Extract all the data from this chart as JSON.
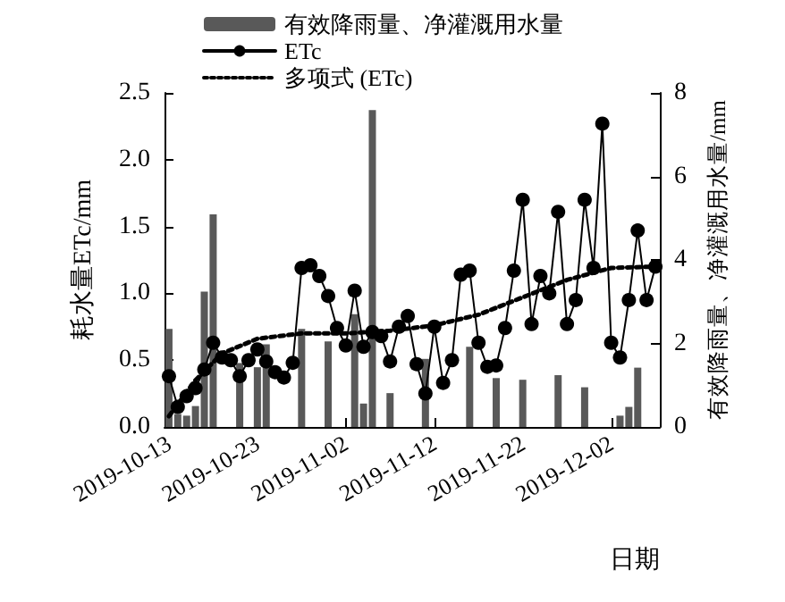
{
  "chart_data": {
    "type": "line",
    "xlabel": "日期",
    "ylabel": "耗水量ETc/mm",
    "y2label": "有效降雨量、净灌溉用水量/mm",
    "xlim": [
      "2019-10-12T12:00",
      "2019-12-07T12:00"
    ],
    "xticks": [
      "2019-10-13",
      "2019-10-23",
      "2019-11-02",
      "2019-11-12",
      "2019-11-22",
      "2019-12-02"
    ],
    "ylim": [
      0,
      2.5
    ],
    "yticks": [
      {
        "value": 0,
        "label": "0.0"
      },
      {
        "value": 0.5,
        "label": "0.5"
      },
      {
        "value": 1,
        "label": "1.0"
      },
      {
        "value": 1.5,
        "label": "1.5"
      },
      {
        "value": 2,
        "label": "2.0"
      },
      {
        "value": 2.5,
        "label": "2.5"
      }
    ],
    "y2lim": [
      0,
      8
    ],
    "y2ticks": [
      0,
      2,
      4,
      6,
      8
    ],
    "legend": "top",
    "grid": false,
    "series": [
      {
        "name": "有效降雨量、净灌溉用水量",
        "type": "bar",
        "axis": "y2",
        "color": "#595959",
        "x": [
          "2019-10-13",
          "2019-10-14",
          "2019-10-15",
          "2019-10-16",
          "2019-10-17",
          "2019-10-18",
          "2019-10-21",
          "2019-10-23",
          "2019-10-24",
          "2019-10-28",
          "2019-10-31",
          "2019-11-03",
          "2019-11-04",
          "2019-11-05",
          "2019-11-07",
          "2019-11-11",
          "2019-11-16",
          "2019-11-19",
          "2019-11-22",
          "2019-11-26",
          "2019-11-29",
          "2019-12-03",
          "2019-12-04",
          "2019-12-05"
        ],
        "values": [
          2.35,
          0.31,
          0.27,
          0.5,
          3.24,
          5.09,
          1.53,
          1.43,
          1.98,
          2.35,
          2.05,
          2.7,
          0.56,
          7.59,
          0.81,
          1.63,
          1.92,
          1.17,
          1.13,
          1.24,
          0.95,
          0.27,
          0.48,
          1.42
        ]
      },
      {
        "name": "ETc",
        "color": "#000000",
        "marker": "circle",
        "line_style": "solid",
        "x": [
          "2019-10-13",
          "2019-10-14",
          "2019-10-15",
          "2019-10-16",
          "2019-10-17",
          "2019-10-18",
          "2019-10-19",
          "2019-10-20",
          "2019-10-21",
          "2019-10-22",
          "2019-10-23",
          "2019-10-24",
          "2019-10-25",
          "2019-10-26",
          "2019-10-27",
          "2019-10-28",
          "2019-10-29",
          "2019-10-30",
          "2019-10-31",
          "2019-11-01",
          "2019-11-02",
          "2019-11-03",
          "2019-11-04",
          "2019-11-05",
          "2019-11-06",
          "2019-11-07",
          "2019-11-08",
          "2019-11-09",
          "2019-11-10",
          "2019-11-11",
          "2019-11-12",
          "2019-11-13",
          "2019-11-14",
          "2019-11-15",
          "2019-11-16",
          "2019-11-17",
          "2019-11-18",
          "2019-11-19",
          "2019-11-20",
          "2019-11-21",
          "2019-11-22",
          "2019-11-23",
          "2019-11-24",
          "2019-11-25",
          "2019-11-26",
          "2019-11-27",
          "2019-11-28",
          "2019-11-29",
          "2019-11-30",
          "2019-12-01",
          "2019-12-02",
          "2019-12-03",
          "2019-12-04",
          "2019-12-05",
          "2019-12-06",
          "2019-12-07"
        ],
        "values": [
          0.38,
          0.15,
          0.23,
          0.29,
          0.43,
          0.63,
          0.52,
          0.5,
          0.38,
          0.5,
          0.58,
          0.49,
          0.41,
          0.37,
          0.48,
          1.19,
          1.21,
          1.13,
          0.98,
          0.74,
          0.61,
          1.02,
          0.6,
          0.71,
          0.68,
          0.49,
          0.75,
          0.83,
          0.47,
          0.25,
          0.75,
          0.33,
          0.5,
          1.14,
          1.17,
          0.63,
          0.45,
          0.46,
          0.74,
          1.17,
          1.7,
          0.77,
          1.13,
          1.0,
          1.61,
          0.77,
          0.95,
          1.7,
          1.19,
          2.27,
          0.63,
          0.52,
          0.95,
          1.47,
          0.95,
          1.2
        ]
      },
      {
        "name": "多项式 (ETc)",
        "type": "line",
        "color": "#000000",
        "marker": "none",
        "line_style": "dotted",
        "x": [
          "2019-10-13",
          "2019-10-16",
          "2019-10-19",
          "2019-10-23",
          "2019-10-28",
          "2019-11-02",
          "2019-11-07",
          "2019-11-12",
          "2019-11-17",
          "2019-11-22",
          "2019-11-27",
          "2019-12-02",
          "2019-12-07"
        ],
        "values": [
          0.08,
          0.35,
          0.55,
          0.66,
          0.7,
          0.7,
          0.72,
          0.76,
          0.84,
          0.97,
          1.1,
          1.19,
          1.2
        ]
      }
    ]
  }
}
